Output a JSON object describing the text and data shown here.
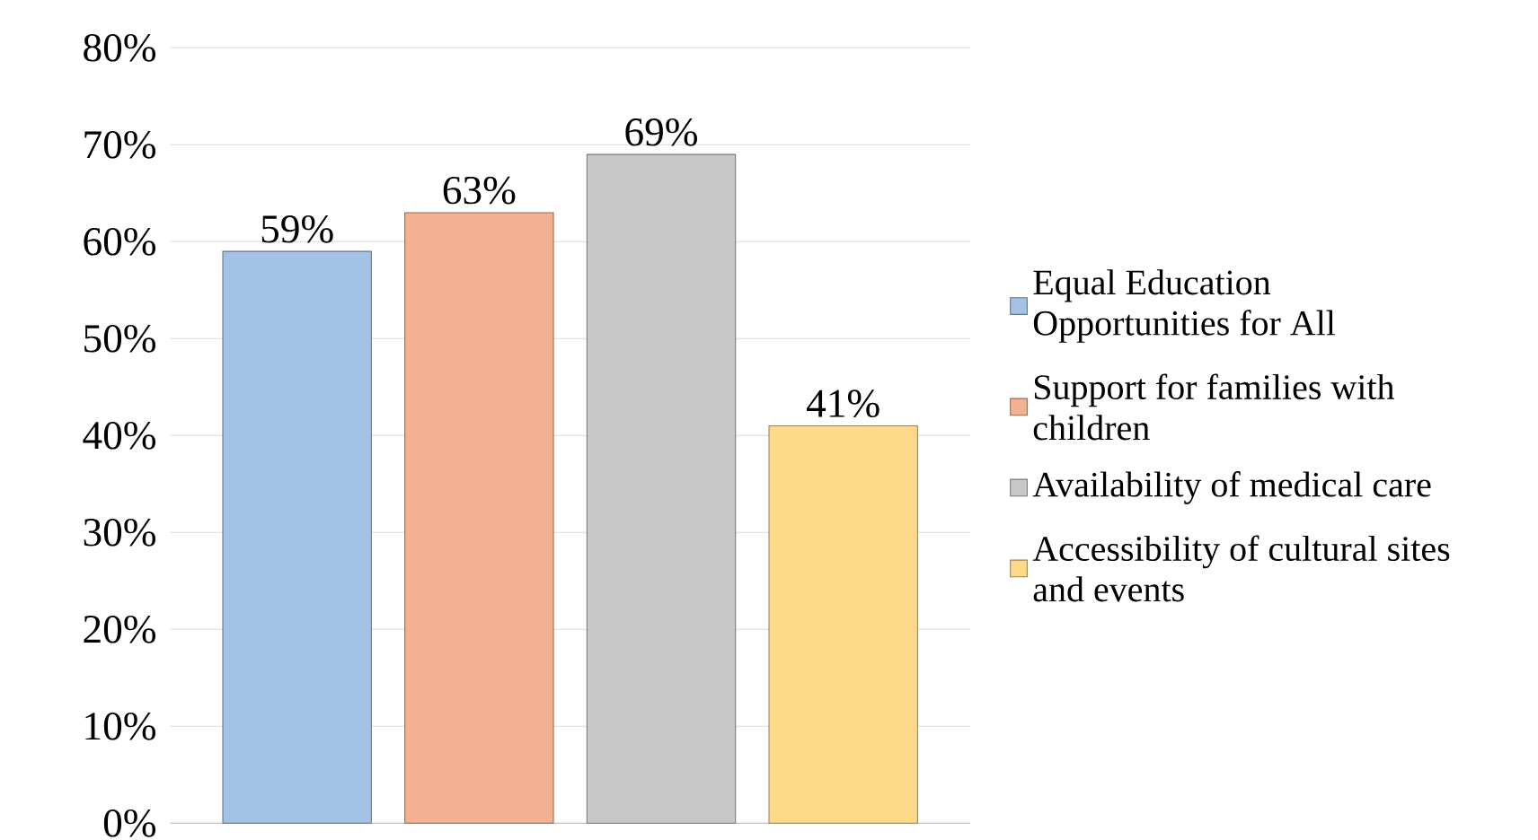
{
  "chart_data": {
    "type": "bar",
    "categories": [
      null
    ],
    "series": [
      {
        "name": "Equal Education Opportunities for All",
        "color": "#a3c2e6",
        "values": [
          59
        ],
        "value_labels": [
          "59%"
        ]
      },
      {
        "name": "Support for families with children",
        "color": "#f4b191",
        "values": [
          63
        ],
        "value_labels": [
          "63%"
        ]
      },
      {
        "name": "Availability of medical care",
        "color": "#c8c8c8",
        "values": [
          69
        ],
        "value_labels": [
          "69%"
        ]
      },
      {
        "name": "Accessibility of cultural sites and events",
        "color": "#ffd98a",
        "values": [
          41
        ],
        "value_labels": [
          "41%"
        ]
      }
    ],
    "ylim": [
      0,
      80
    ],
    "yticks": [
      {
        "value": 0,
        "label": "0%"
      },
      {
        "value": 10,
        "label": "10%"
      },
      {
        "value": 20,
        "label": "20%"
      },
      {
        "value": 30,
        "label": "30%"
      },
      {
        "value": 40,
        "label": "40%"
      },
      {
        "value": 50,
        "label": "50%"
      },
      {
        "value": 60,
        "label": "60%"
      },
      {
        "value": 70,
        "label": "70%"
      },
      {
        "value": 80,
        "label": "80%"
      }
    ],
    "grid": "y",
    "legend": "right"
  }
}
